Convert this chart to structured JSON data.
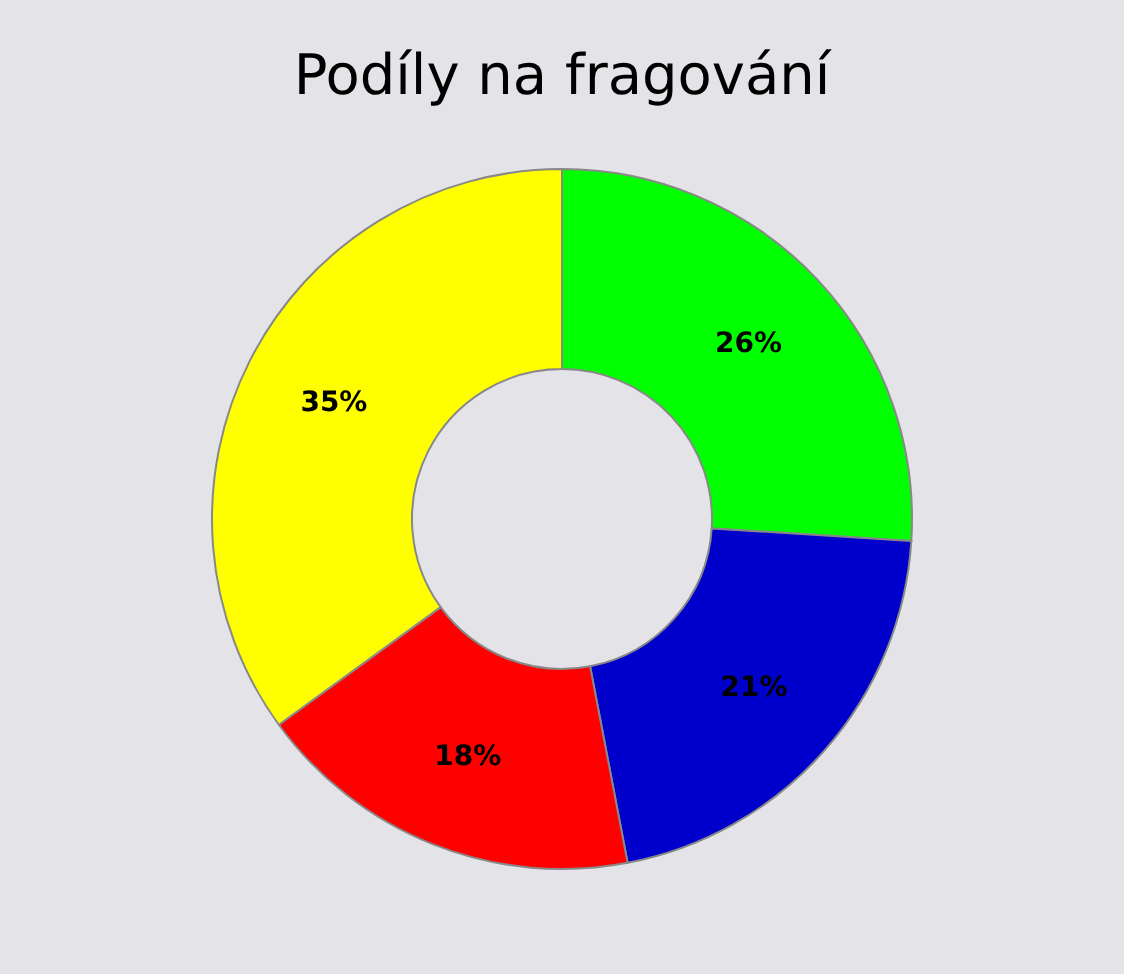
{
  "chart_data": {
    "type": "donut",
    "title": "Podíly na fragování",
    "categories": [
      null,
      null,
      null,
      null
    ],
    "values": [
      26,
      21,
      18,
      35
    ],
    "colors": [
      "#00ff00",
      "#0000cc",
      "#ff0000",
      "#ffff00"
    ],
    "value_labels": [
      "26%",
      "21%",
      "18%",
      "35%"
    ],
    "legend": false
  }
}
